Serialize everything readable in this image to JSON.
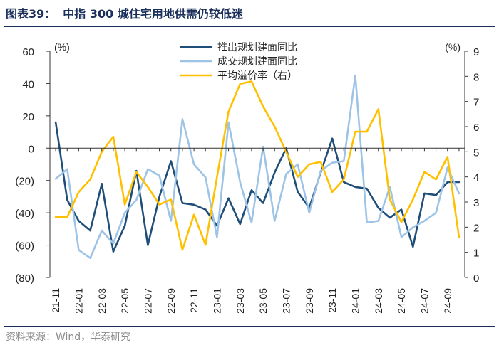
{
  "figure_label": "图表39：",
  "figure_title": "中指 300 城住宅用地供需仍较低迷",
  "source": "资料来源：Wind，华泰研究",
  "colors": {
    "series_launch": "#1f4e79",
    "series_deal": "#9dc3e6",
    "series_premium": "#ffc000",
    "axis": "#333333",
    "title": "#1a2f5a"
  },
  "chart_data": {
    "type": "line",
    "y_left_unit": "(%)",
    "y_right_unit": "(%)",
    "y_left_ticks": [
      "60",
      "40",
      "20",
      "0",
      "(20)",
      "(40)",
      "(60)",
      "(80)"
    ],
    "y_left_tick_values": [
      60,
      40,
      20,
      0,
      -20,
      -40,
      -60,
      -80
    ],
    "y_left_range": [
      -80,
      60
    ],
    "y_right_ticks": [
      "9",
      "8",
      "7",
      "6",
      "5",
      "4",
      "3",
      "2",
      "1",
      "0"
    ],
    "y_right_tick_values": [
      9,
      8,
      7,
      6,
      5,
      4,
      3,
      2,
      1,
      0
    ],
    "y_right_range": [
      0,
      9
    ],
    "x_tick_labels": [
      "21-11",
      "22-01",
      "22-03",
      "22-05",
      "22-07",
      "22-09",
      "22-11",
      "23-01",
      "23-03",
      "23-05",
      "23-07",
      "23-09",
      "23-11",
      "24-01",
      "24-03",
      "24-05",
      "24-07",
      "24-09"
    ],
    "months": [
      "21-11",
      "21-12",
      "22-01",
      "22-02",
      "22-03",
      "22-04",
      "22-05",
      "22-06",
      "22-07",
      "22-08",
      "22-09",
      "22-10",
      "22-11",
      "22-12",
      "23-01",
      "23-02",
      "23-03",
      "23-04",
      "23-05",
      "23-06",
      "23-07",
      "23-08",
      "23-09",
      "23-10",
      "23-11",
      "23-12",
      "24-01",
      "24-02",
      "24-03",
      "24-04",
      "24-05",
      "24-06",
      "24-07",
      "24-08",
      "24-09",
      "24-10"
    ],
    "series": [
      {
        "name": "推出规划建面同比",
        "axis": "left",
        "color": "#1f4e79",
        "values": [
          16,
          -32,
          -45,
          -51,
          -22,
          -64,
          -48,
          -14,
          -60,
          -30,
          -8,
          -34,
          -35,
          -38,
          -48,
          -31,
          -47,
          -26,
          -34,
          -15,
          0,
          -27,
          -37,
          -15,
          6,
          -21,
          -24,
          -25,
          -37,
          -43,
          -38,
          -61,
          -28,
          -29,
          -21,
          -21
        ]
      },
      {
        "name": "成交规划建面同比",
        "axis": "left",
        "color": "#9dc3e6",
        "values": [
          -19,
          -13,
          -63,
          -68,
          -51,
          -59,
          -40,
          -32,
          -13,
          -17,
          -45,
          18,
          -10,
          -18,
          -55,
          16,
          -21,
          -46,
          1,
          -45,
          -16,
          -10,
          -40,
          -14,
          -9,
          -8,
          45,
          -46,
          -45,
          -24,
          -55,
          -49,
          -45,
          -40,
          -12,
          -28
        ]
      },
      {
        "name": "平均溢价率（右）",
        "axis": "right",
        "color": "#ffc000",
        "values": [
          2.4,
          2.4,
          3.4,
          3.9,
          5.0,
          5.6,
          2.9,
          4.2,
          3.6,
          2.9,
          3.1,
          1.1,
          2.5,
          1.3,
          4.0,
          6.6,
          7.7,
          7.8,
          6.8,
          6.0,
          5.0,
          4.0,
          4.5,
          4.6,
          3.4,
          3.9,
          5.8,
          5.8,
          6.7,
          3.1,
          2.2,
          3.1,
          4.2,
          3.9,
          4.8,
          1.6
        ]
      }
    ]
  }
}
